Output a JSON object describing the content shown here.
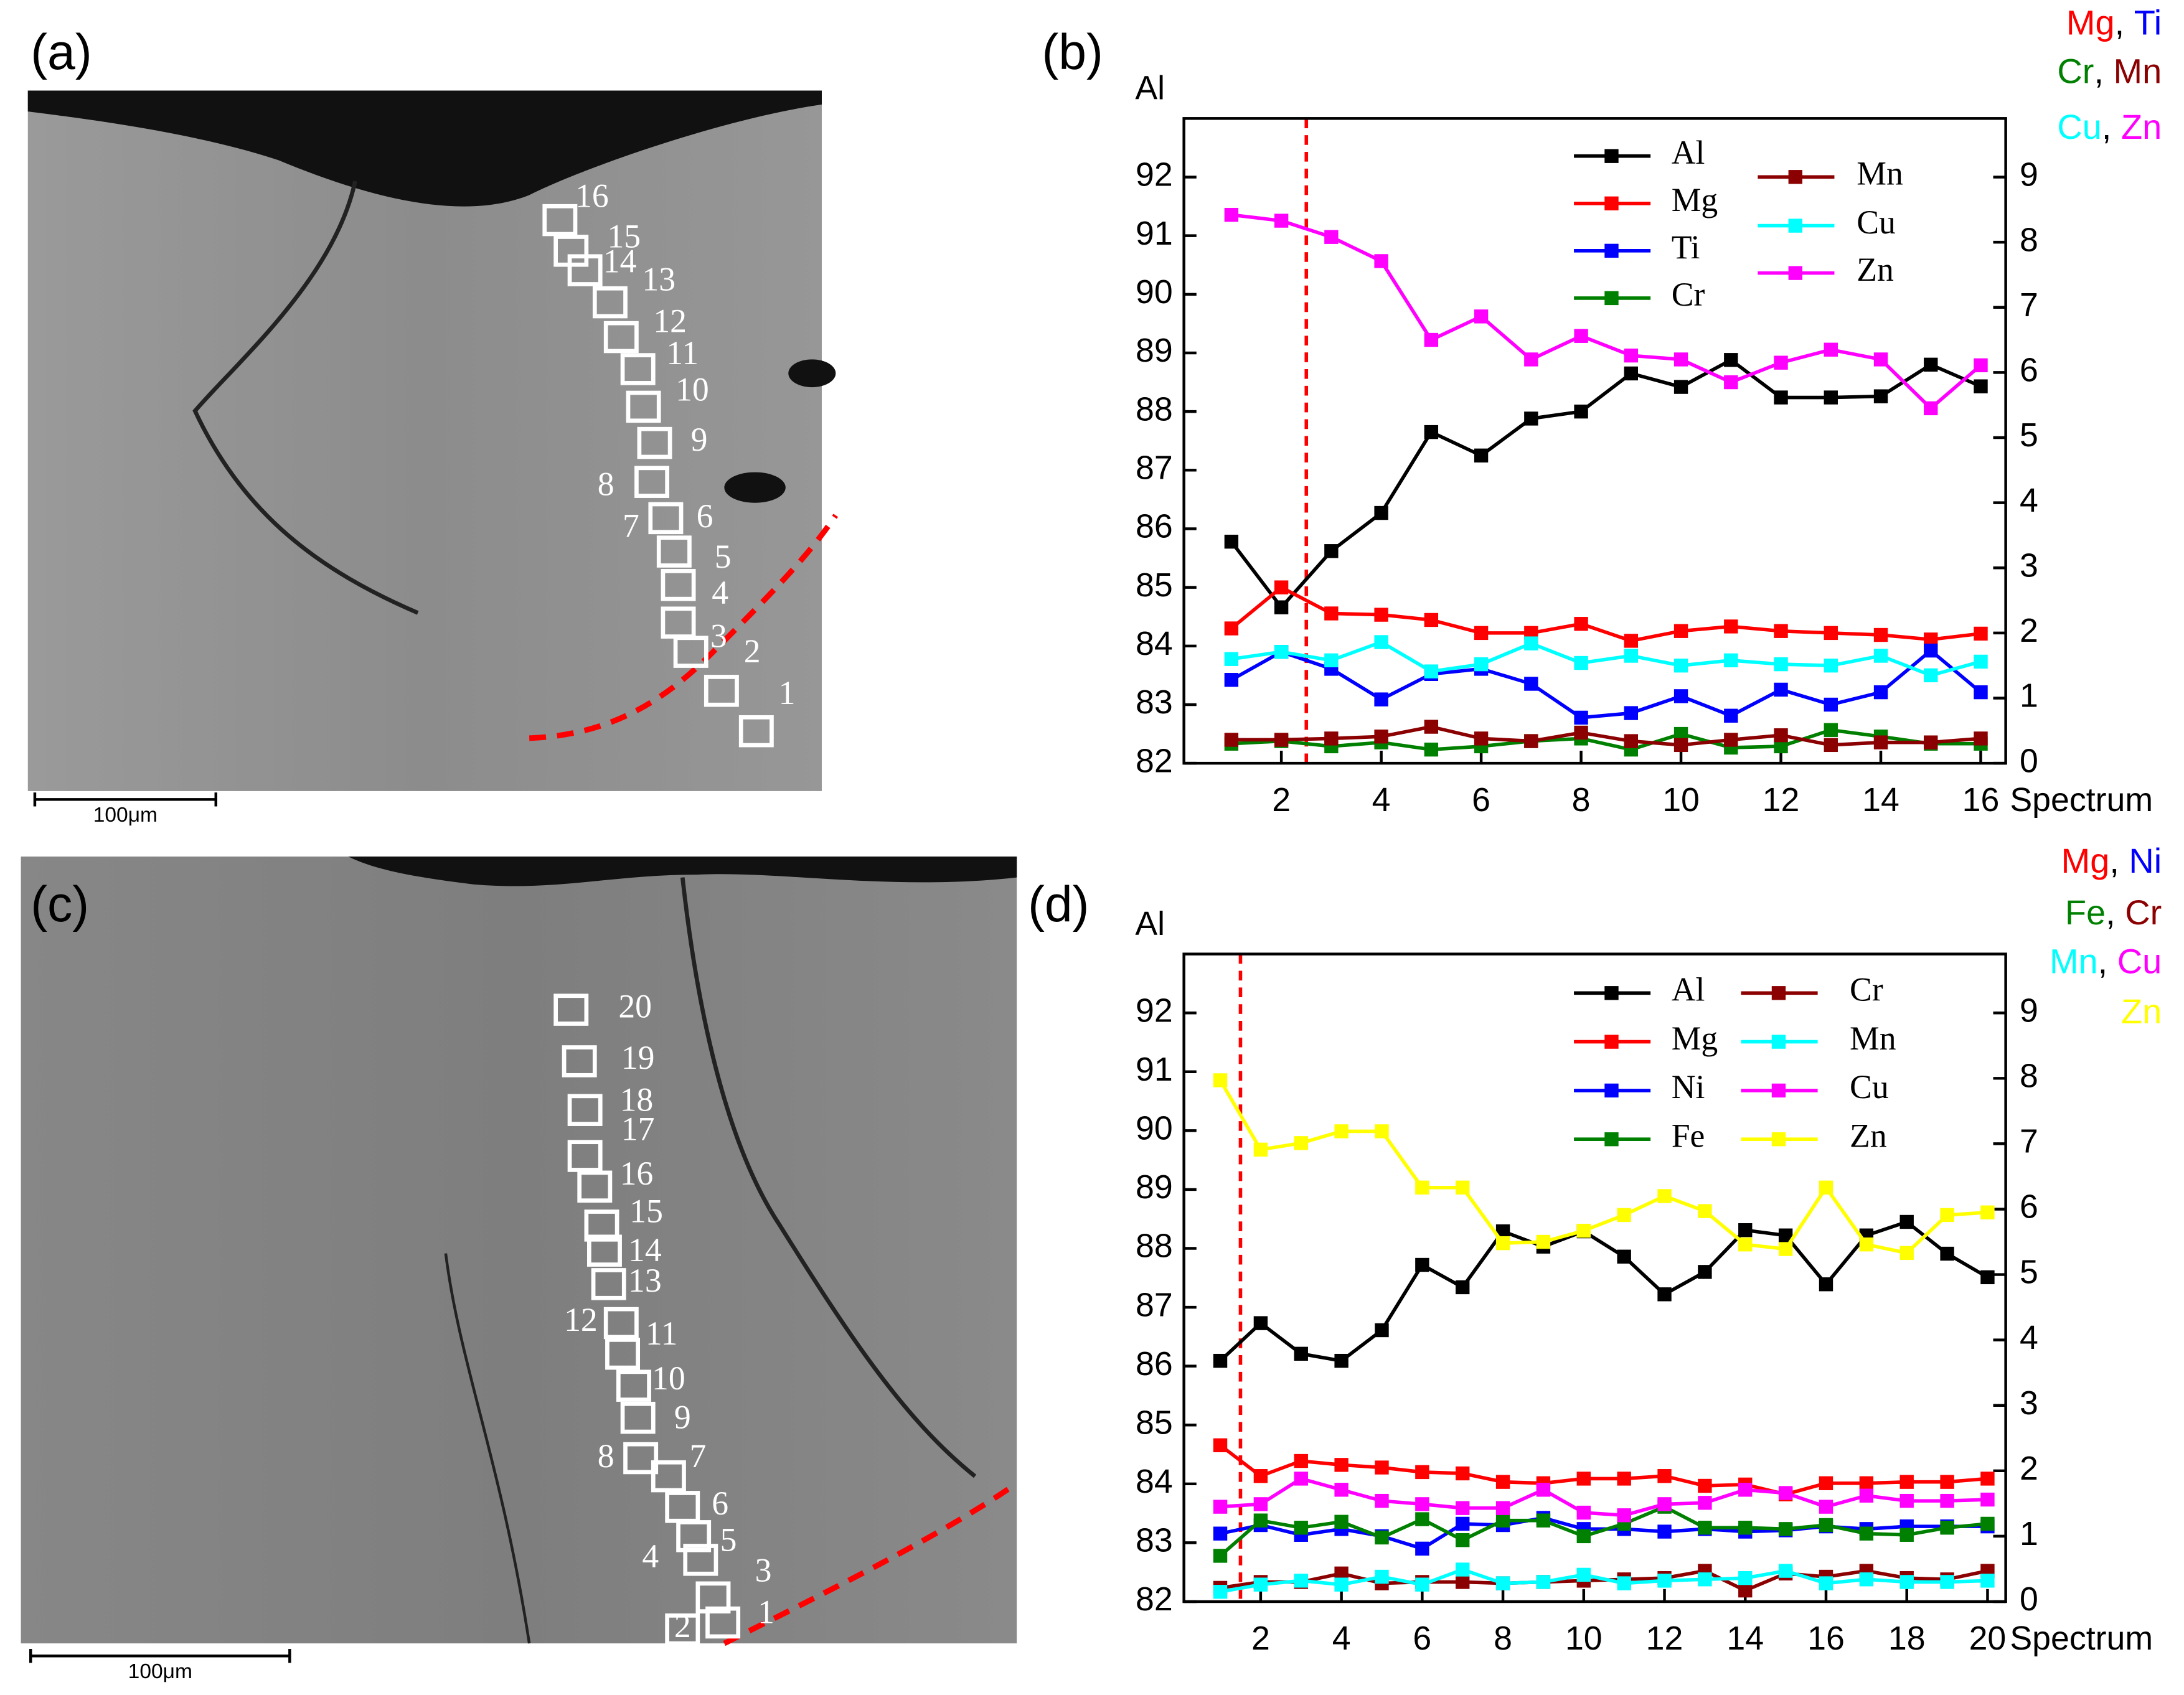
{
  "micrographs": [
    {
      "label": "(a)",
      "scale_bar": "100μm",
      "spot_labels": [
        "1",
        "2",
        "3",
        "4",
        "5",
        "6",
        "7",
        "8",
        "9",
        "10",
        "11",
        "12",
        "13",
        "14",
        "15",
        "16"
      ]
    },
    {
      "label": "(c)",
      "scale_bar": "100μm",
      "spot_labels": [
        "1",
        "2",
        "3",
        "4",
        "5",
        "6",
        "7",
        "8",
        "9",
        "10",
        "11",
        "12",
        "13",
        "14",
        "15",
        "16",
        "17",
        "18",
        "19",
        "20"
      ]
    }
  ],
  "chart_data": [
    {
      "type": "line",
      "panel_label": "(b)",
      "ylabel": "Al",
      "xlabel": "Spectrum",
      "y2label": [
        [
          {
            "text": "Mg",
            "color": "#ff0000"
          },
          {
            "text": ", ",
            "color": "#000000"
          },
          {
            "text": "Ti",
            "color": "#0000ff"
          }
        ],
        [
          {
            "text": "Cr",
            "color": "#008000"
          },
          {
            "text": ", ",
            "color": "#000000"
          },
          {
            "text": "Mn",
            "color": "#8b0000"
          }
        ],
        [
          {
            "text": "Cu",
            "color": "#00ffff"
          },
          {
            "text": ", ",
            "color": "#000000"
          },
          {
            "text": "Zn",
            "color": "#ff00ff"
          }
        ]
      ],
      "x": [
        1,
        2,
        3,
        4,
        5,
        6,
        7,
        8,
        9,
        10,
        11,
        12,
        13,
        14,
        15,
        16
      ],
      "xlim": [
        0.05,
        16.5
      ],
      "xticks": [
        2,
        4,
        6,
        8,
        10,
        12,
        14,
        16
      ],
      "ylim": [
        82,
        93
      ],
      "yticks": [
        82,
        83,
        84,
        85,
        86,
        87,
        88,
        89,
        90,
        91,
        92
      ],
      "y2lim": [
        0,
        9.9
      ],
      "y2ticks": [
        0,
        1,
        2,
        3,
        4,
        5,
        6,
        7,
        8,
        9
      ],
      "vline": {
        "x": 2.5,
        "color": "#ff0000",
        "dashed": true
      },
      "series": [
        {
          "name": "Al",
          "color": "#000000",
          "values": [
            85.78,
            84.66,
            85.62,
            86.27,
            87.65,
            87.25,
            87.88,
            88.0,
            88.65,
            88.42,
            88.88,
            88.24,
            88.24,
            88.26,
            88.8,
            88.43
          ]
        },
        {
          "name": "Mg",
          "color": "#ff0000",
          "axis": "y2",
          "values": [
            2.07,
            2.7,
            2.3,
            2.28,
            2.2,
            2.0,
            2.0,
            2.14,
            1.88,
            2.03,
            2.1,
            2.03,
            2.0,
            1.97,
            1.9,
            1.99
          ]
        },
        {
          "name": "Ti",
          "color": "#0000ff",
          "axis": "y2",
          "values": [
            1.28,
            1.71,
            1.45,
            0.98,
            1.37,
            1.45,
            1.22,
            0.7,
            0.77,
            1.03,
            0.73,
            1.13,
            0.9,
            1.09,
            1.73,
            1.09
          ]
        },
        {
          "name": "Cr",
          "color": "#008000",
          "axis": "y2",
          "values": [
            0.3,
            0.34,
            0.26,
            0.32,
            0.21,
            0.26,
            0.34,
            0.38,
            0.21,
            0.45,
            0.24,
            0.26,
            0.51,
            0.41,
            0.3,
            0.3
          ]
        },
        {
          "name": "Mn",
          "color": "#8b0000",
          "axis": "y2",
          "values": [
            0.36,
            0.36,
            0.38,
            0.41,
            0.56,
            0.38,
            0.34,
            0.47,
            0.34,
            0.28,
            0.36,
            0.43,
            0.28,
            0.32,
            0.32,
            0.38
          ]
        },
        {
          "name": "Cu",
          "color": "#00ffff",
          "axis": "y2",
          "values": [
            1.6,
            1.71,
            1.58,
            1.86,
            1.41,
            1.52,
            1.84,
            1.54,
            1.65,
            1.5,
            1.58,
            1.52,
            1.5,
            1.65,
            1.35,
            1.56
          ]
        },
        {
          "name": "Zn",
          "color": "#ff00ff",
          "axis": "y2",
          "values": [
            8.42,
            8.33,
            8.08,
            7.71,
            6.5,
            6.86,
            6.2,
            6.56,
            6.26,
            6.2,
            5.85,
            6.15,
            6.35,
            6.2,
            5.45,
            6.11
          ]
        }
      ]
    },
    {
      "type": "line",
      "panel_label": "(d)",
      "ylabel": "Al",
      "xlabel": "Spectrum",
      "y2label": [
        [
          {
            "text": "Mg",
            "color": "#ff0000"
          },
          {
            "text": ", ",
            "color": "#000000"
          },
          {
            "text": "Ni",
            "color": "#0000ff"
          }
        ],
        [
          {
            "text": "Fe",
            "color": "#008000"
          },
          {
            "text": ", ",
            "color": "#000000"
          },
          {
            "text": "Cr",
            "color": "#8b0000"
          }
        ],
        [
          {
            "text": "Mn",
            "color": "#00ffff"
          },
          {
            "text": ", ",
            "color": "#000000"
          },
          {
            "text": "Cu",
            "color": "#ff00ff"
          }
        ],
        [
          {
            "text": "Zn",
            "color": "#ffff00"
          }
        ]
      ],
      "x": [
        1,
        2,
        3,
        4,
        5,
        6,
        7,
        8,
        9,
        10,
        11,
        12,
        13,
        14,
        15,
        16,
        17,
        18,
        19,
        20
      ],
      "xlim": [
        0.1,
        20.45
      ],
      "xticks": [
        2,
        4,
        6,
        8,
        10,
        12,
        14,
        16,
        18,
        20
      ],
      "ylim": [
        82,
        93
      ],
      "yticks": [
        82,
        83,
        84,
        85,
        86,
        87,
        88,
        89,
        90,
        91,
        92
      ],
      "y2lim": [
        0,
        9.9
      ],
      "y2ticks": [
        0,
        1,
        2,
        3,
        4,
        5,
        6,
        7,
        8,
        9
      ],
      "vline": {
        "x": 1.5,
        "color": "#ff0000",
        "dashed": true
      },
      "series": [
        {
          "name": "Al",
          "color": "#000000",
          "values": [
            86.09,
            86.73,
            86.21,
            86.09,
            86.61,
            87.72,
            87.34,
            88.29,
            88.03,
            88.29,
            87.86,
            87.22,
            87.6,
            88.31,
            88.22,
            87.39,
            88.22,
            88.45,
            87.91,
            87.51
          ]
        },
        {
          "name": "Mg",
          "color": "#ff0000",
          "axis": "y2",
          "values": [
            2.39,
            1.92,
            2.15,
            2.09,
            2.05,
            1.98,
            1.96,
            1.83,
            1.81,
            1.88,
            1.88,
            1.92,
            1.77,
            1.79,
            1.64,
            1.81,
            1.81,
            1.83,
            1.83,
            1.88
          ]
        },
        {
          "name": "Ni",
          "color": "#0000ff",
          "axis": "y2",
          "values": [
            1.04,
            1.17,
            1.02,
            1.11,
            1.0,
            0.81,
            1.19,
            1.17,
            1.28,
            1.11,
            1.11,
            1.07,
            1.11,
            1.07,
            1.09,
            1.15,
            1.11,
            1.15,
            1.15,
            1.15
          ]
        },
        {
          "name": "Fe",
          "color": "#008000",
          "axis": "y2",
          "values": [
            0.7,
            1.24,
            1.13,
            1.22,
            0.98,
            1.26,
            0.94,
            1.24,
            1.24,
            1.0,
            1.19,
            1.45,
            1.13,
            1.13,
            1.11,
            1.17,
            1.04,
            1.02,
            1.13,
            1.19
          ]
        },
        {
          "name": "Cr",
          "color": "#8b0000",
          "axis": "y2",
          "values": [
            0.21,
            0.3,
            0.3,
            0.43,
            0.28,
            0.3,
            0.3,
            0.28,
            0.3,
            0.32,
            0.34,
            0.36,
            0.47,
            0.17,
            0.43,
            0.38,
            0.47,
            0.36,
            0.34,
            0.47
          ]
        },
        {
          "name": "Mn",
          "color": "#00ffff",
          "axis": "y2",
          "values": [
            0.15,
            0.26,
            0.32,
            0.26,
            0.38,
            0.26,
            0.49,
            0.28,
            0.3,
            0.41,
            0.28,
            0.32,
            0.34,
            0.36,
            0.47,
            0.28,
            0.34,
            0.3,
            0.3,
            0.32
          ]
        },
        {
          "name": "Cu",
          "color": "#ff00ff",
          "axis": "y2",
          "values": [
            1.45,
            1.49,
            1.88,
            1.71,
            1.54,
            1.49,
            1.43,
            1.43,
            1.71,
            1.36,
            1.32,
            1.49,
            1.51,
            1.71,
            1.66,
            1.45,
            1.62,
            1.54,
            1.54,
            1.56
          ]
        },
        {
          "name": "Zn",
          "color": "#ffff00",
          "axis": "y2",
          "values": [
            7.97,
            6.91,
            7.01,
            7.19,
            7.19,
            6.33,
            6.33,
            5.48,
            5.5,
            5.67,
            5.91,
            6.2,
            5.97,
            5.46,
            5.39,
            6.33,
            5.46,
            5.33,
            5.91,
            5.95
          ]
        }
      ]
    }
  ]
}
